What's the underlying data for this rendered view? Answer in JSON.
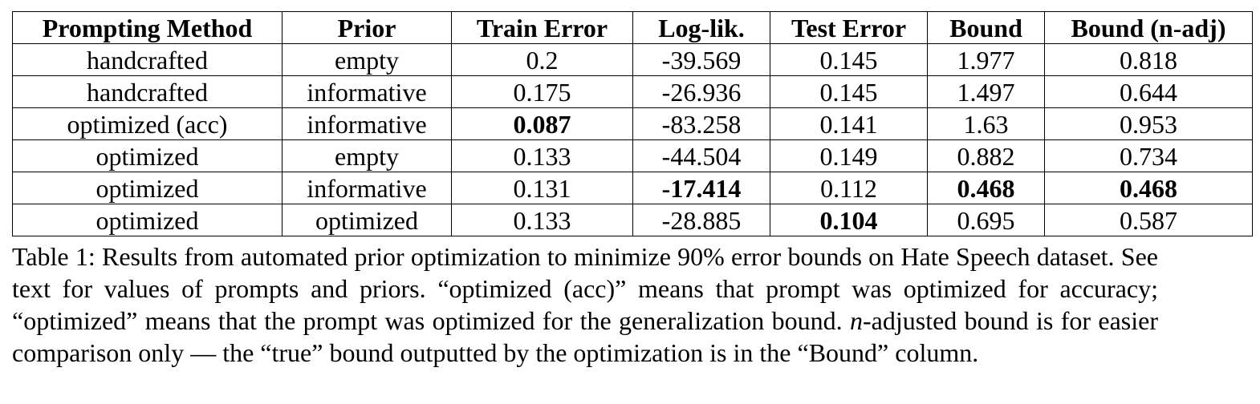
{
  "table": {
    "header": [
      "Prompting Method",
      "Prior",
      "Train Error",
      "Log-lik.",
      "Test Error",
      "Bound",
      "Bound (n-adj)"
    ],
    "rows": [
      [
        {
          "text": "handcrafted"
        },
        {
          "text": "empty"
        },
        {
          "text": "0.2"
        },
        {
          "text": "-39.569"
        },
        {
          "text": "0.145"
        },
        {
          "text": "1.977"
        },
        {
          "text": "0.818"
        }
      ],
      [
        {
          "text": "handcrafted"
        },
        {
          "text": "informative"
        },
        {
          "text": "0.175"
        },
        {
          "text": "-26.936"
        },
        {
          "text": "0.145"
        },
        {
          "text": "1.497"
        },
        {
          "text": "0.644"
        }
      ],
      [
        {
          "text": "optimized (acc)"
        },
        {
          "text": "informative"
        },
        {
          "text": "0.087",
          "bold": true
        },
        {
          "text": "-83.258"
        },
        {
          "text": "0.141"
        },
        {
          "text": "1.63"
        },
        {
          "text": "0.953"
        }
      ],
      [
        {
          "text": "optimized"
        },
        {
          "text": "empty"
        },
        {
          "text": "0.133"
        },
        {
          "text": "-44.504"
        },
        {
          "text": "0.149"
        },
        {
          "text": "0.882"
        },
        {
          "text": "0.734"
        }
      ],
      [
        {
          "text": "optimized"
        },
        {
          "text": "informative"
        },
        {
          "text": "0.131"
        },
        {
          "text": "-17.414",
          "bold": true
        },
        {
          "text": "0.112"
        },
        {
          "text": "0.468",
          "bold": true
        },
        {
          "text": "0.468",
          "bold": true
        }
      ],
      [
        {
          "text": "optimized"
        },
        {
          "text": "optimized"
        },
        {
          "text": "0.133"
        },
        {
          "text": "-28.885"
        },
        {
          "text": "0.104",
          "bold": true
        },
        {
          "text": "0.695"
        },
        {
          "text": "0.587"
        }
      ]
    ]
  },
  "caption": {
    "parts": [
      "Table 1: Results from automated prior optimization to minimize 90% error bounds on Hate Speech dataset. See text for values of prompts and priors. “optimized (acc)” means that prompt was optimized for accuracy; “optimized” means that the prompt was optimized for the generalization bound. ",
      "n",
      "-adjusted bound is for easier comparison only — the “true” bound outputted by the optimization is in the “Bound” column."
    ]
  }
}
